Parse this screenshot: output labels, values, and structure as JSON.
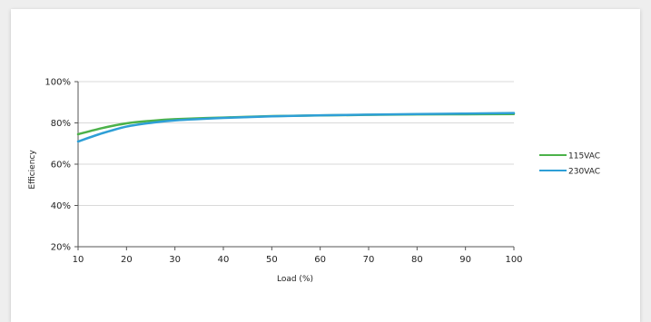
{
  "chart_data": {
    "type": "line",
    "title": "",
    "xlabel": "Load (%)",
    "ylabel": "Efficiency",
    "xlim": [
      10,
      100
    ],
    "ylim": [
      20,
      100
    ],
    "x_ticks": [
      10,
      20,
      30,
      40,
      50,
      60,
      70,
      80,
      90,
      100
    ],
    "y_ticks": [
      20,
      40,
      60,
      80,
      100
    ],
    "y_tick_labels": [
      "20%",
      "40%",
      "60%",
      "80%",
      "100%"
    ],
    "grid": "horizontal",
    "legend_position": "right",
    "series": [
      {
        "name": "115VAC",
        "color": "#4cb24a",
        "x": [
          10,
          15,
          20,
          25,
          30,
          40,
          50,
          60,
          70,
          80,
          90,
          100
        ],
        "y": [
          74.5,
          77.5,
          79.8,
          81.0,
          81.8,
          82.6,
          83.3,
          83.6,
          83.9,
          84.1,
          84.2,
          84.3
        ]
      },
      {
        "name": "230VAC",
        "color": "#2e9fd6",
        "x": [
          10,
          15,
          20,
          25,
          30,
          40,
          50,
          60,
          70,
          80,
          90,
          100
        ],
        "y": [
          71.0,
          75.0,
          78.2,
          80.0,
          81.2,
          82.4,
          83.2,
          83.7,
          84.0,
          84.3,
          84.5,
          84.8
        ]
      }
    ]
  }
}
